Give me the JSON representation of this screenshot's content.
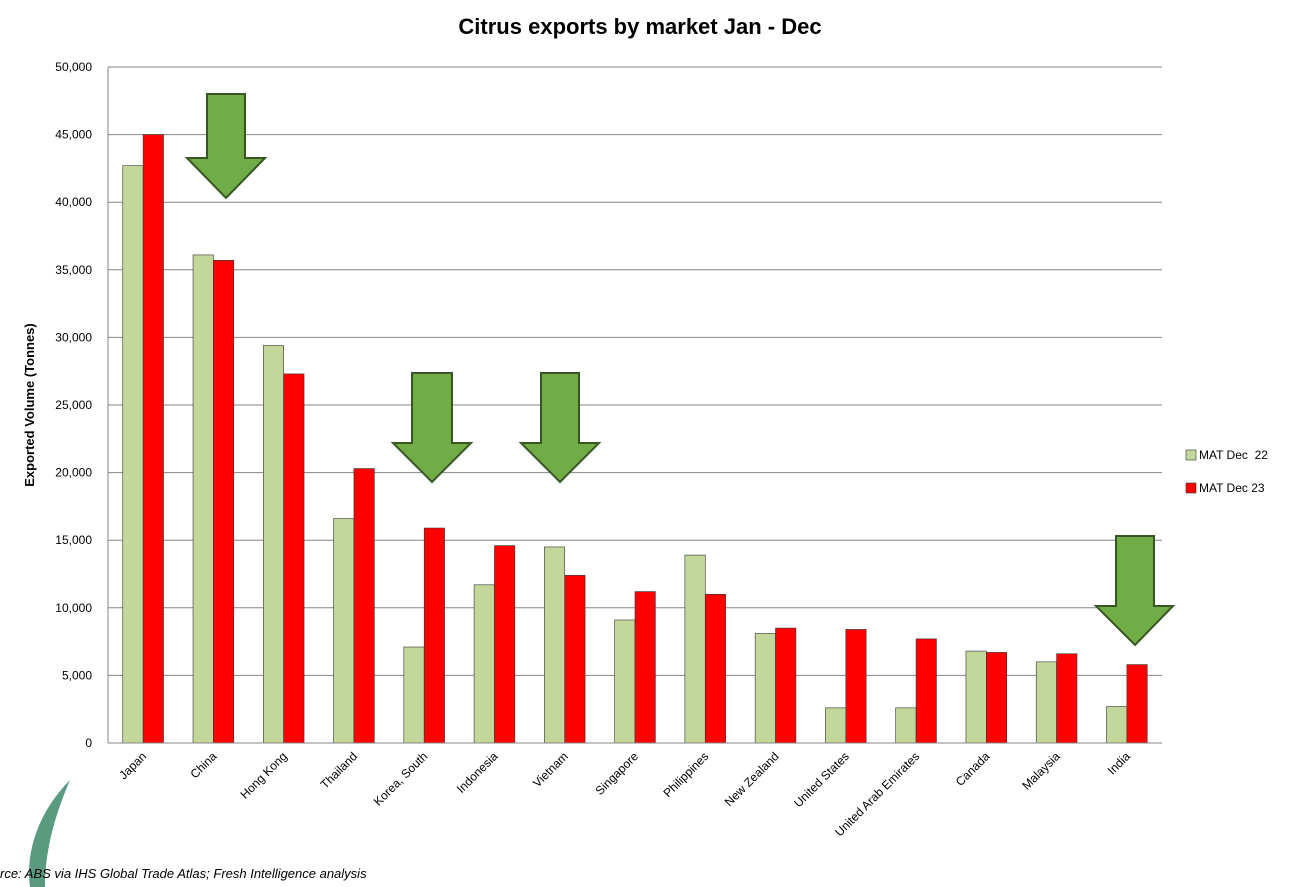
{
  "chart_data": {
    "type": "bar",
    "title": "Citrus exports by market Jan - Dec",
    "y_label": "Exported Volume (Tonnes)",
    "source": "rce: ABS via IHS Global Trade Atlas; Fresh Intelligence analysis",
    "categories": [
      "Japan",
      "China",
      "Hong Kong",
      "Thailand",
      "Korea, South",
      "Indonesia",
      "Vietnam",
      "Singapore",
      "Philippines",
      "New Zealand",
      "United States",
      "United Arab Emirates",
      "Canada",
      "Malaysia",
      "India"
    ],
    "series": [
      {
        "name": "MAT Dec  22",
        "color": "#c4d79b",
        "values": [
          42700,
          36100,
          29400,
          16600,
          7100,
          11700,
          14500,
          9100,
          13900,
          8100,
          2600,
          2600,
          6800,
          6000,
          2700
        ]
      },
      {
        "name": "MAT Dec 23",
        "color": "#ff0000",
        "values": [
          45000,
          35700,
          27300,
          20300,
          15900,
          14600,
          12400,
          11200,
          11000,
          8500,
          8400,
          7700,
          6700,
          6600,
          5800
        ]
      }
    ],
    "ylim": [
      0,
      50000
    ],
    "yticks": [
      0,
      {
        "value": 5000,
        "label": "5,000"
      },
      {
        "value": 10000,
        "label": "10,000"
      },
      {
        "value": 15000,
        "label": "15,000"
      },
      {
        "value": 20000,
        "label": "20,000"
      },
      {
        "value": 25000,
        "label": "25,000"
      },
      {
        "value": 30000,
        "label": "30,000"
      },
      {
        "value": 35000,
        "label": "35,000"
      },
      {
        "value": 40000,
        "label": "40,000"
      },
      {
        "value": 45000,
        "label": "45,000"
      },
      {
        "value": 50000,
        "label": "50,000"
      }
    ],
    "grid": true,
    "legend": "right"
  }
}
